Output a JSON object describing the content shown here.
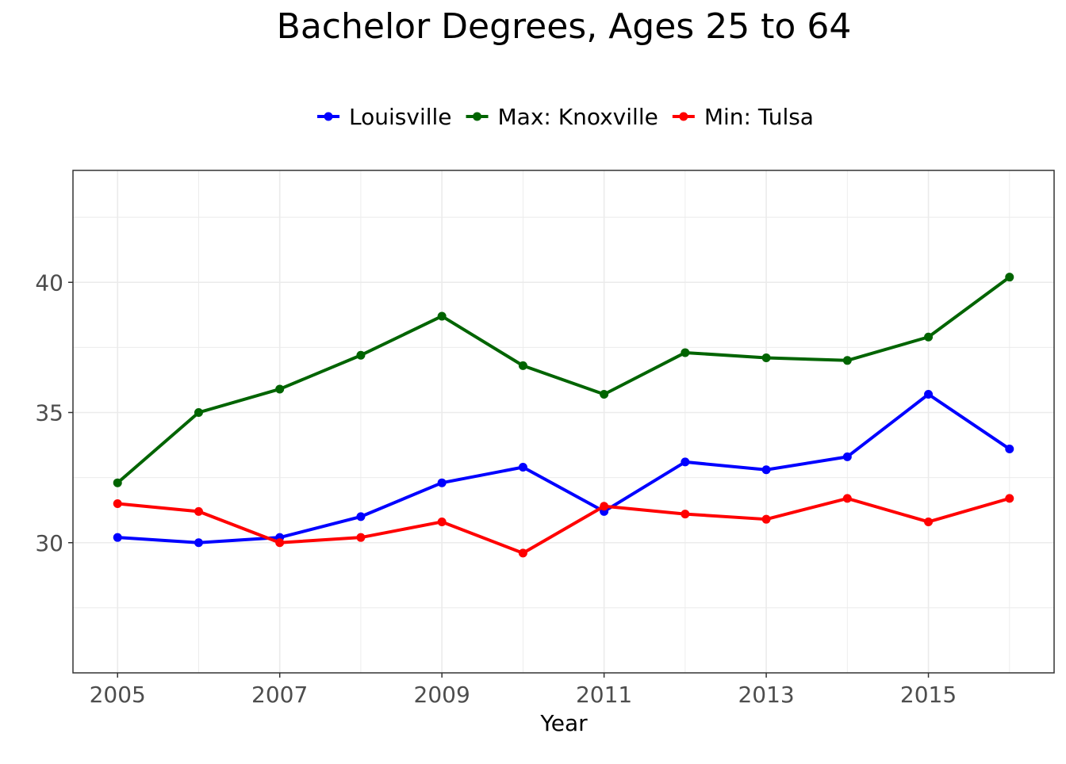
{
  "chart_data": {
    "type": "line",
    "title": "Bachelor Degrees, Ages 25 to 64",
    "xlabel": "Year",
    "ylabel": "",
    "x": [
      2005,
      2006,
      2007,
      2008,
      2009,
      2010,
      2011,
      2012,
      2013,
      2014,
      2015,
      2016
    ],
    "x_ticks": [
      2005,
      2007,
      2009,
      2011,
      2013,
      2015
    ],
    "x_tick_labels": [
      "2005",
      "2007",
      "2009",
      "2011",
      "2013",
      "2015"
    ],
    "y_ticks": [
      30,
      35,
      40
    ],
    "y_tick_labels": [
      "30",
      "35",
      "40"
    ],
    "xlim": [
      2004.45,
      2016.55
    ],
    "ylim": [
      25.0,
      44.3
    ],
    "grid": true,
    "legend_position": "top",
    "series": [
      {
        "name": "Louisville",
        "color": "#0000ff",
        "values": [
          30.2,
          30.0,
          30.2,
          31.0,
          32.3,
          32.9,
          31.2,
          33.1,
          32.8,
          33.3,
          35.7,
          33.6
        ]
      },
      {
        "name": "Max: Knoxville",
        "color": "#006400",
        "values": [
          32.3,
          35.0,
          35.9,
          37.2,
          38.7,
          36.8,
          35.7,
          37.3,
          37.1,
          37.0,
          37.9,
          40.2
        ]
      },
      {
        "name": "Min: Tulsa",
        "color": "#ff0000",
        "values": [
          31.5,
          31.2,
          30.0,
          30.2,
          30.8,
          29.6,
          31.4,
          31.1,
          30.9,
          31.7,
          30.8,
          31.7
        ]
      }
    ]
  }
}
